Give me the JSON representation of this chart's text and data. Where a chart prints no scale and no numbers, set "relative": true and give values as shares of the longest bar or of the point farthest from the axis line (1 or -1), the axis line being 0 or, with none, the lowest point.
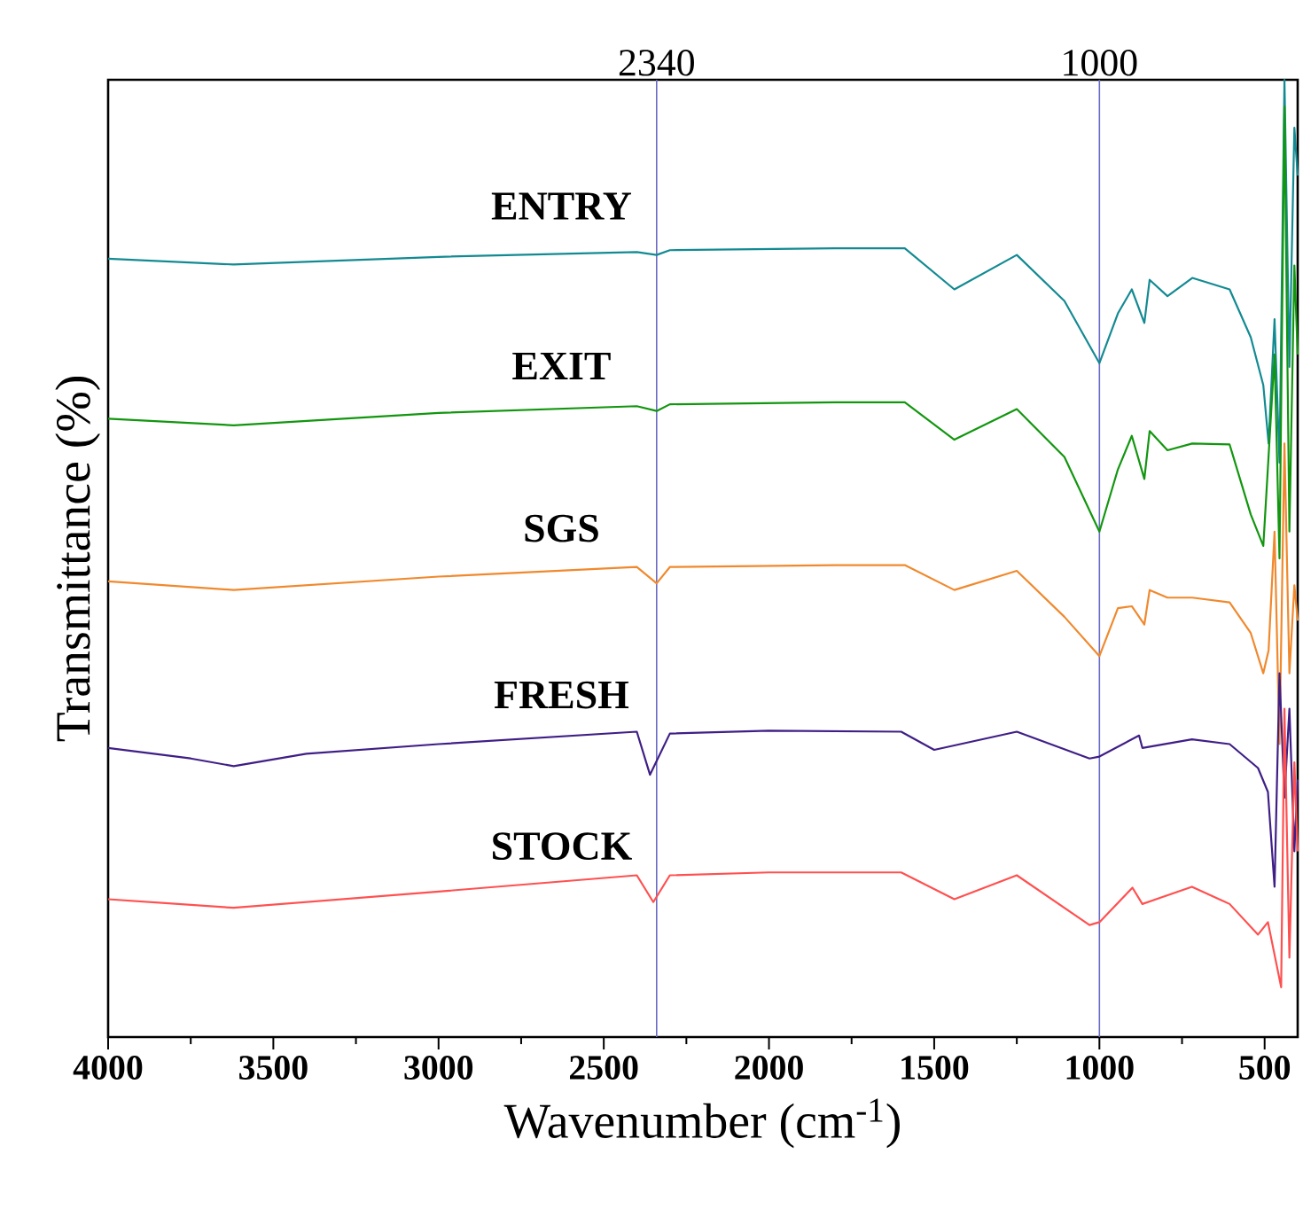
{
  "chart_data": {
    "type": "line",
    "relative": true,
    "xlabel": "Wavenumber (cm$^{-1}$)",
    "ylabel": "Transmittance (%)",
    "xlim": [
      4000,
      400
    ],
    "xticks": [
      4000,
      3500,
      3000,
      2500,
      2000,
      1500,
      1000,
      500
    ],
    "tick_labels": "x",
    "grid": false,
    "marker": "none",
    "line_style": "solid",
    "ref_lines": [
      {
        "axis": "x",
        "value": 2340,
        "label": "2340",
        "color": "#6b6bc4"
      },
      {
        "axis": "x",
        "value": 1000,
        "label": "1000",
        "color": "#6b6bc4"
      }
    ],
    "series": [
      {
        "name": "ENTRY",
        "color": "#138a92",
        "x": [
          4000,
          3620,
          3000,
          2400,
          2340,
          2300,
          1800,
          1589,
          1439,
          1250,
          1106,
          1000,
          944,
          902,
          864,
          848,
          794,
          719,
          606,
          542,
          504,
          488,
          470,
          455,
          440,
          425,
          410,
          400
        ],
        "values": [
          0.813,
          0.807,
          0.815,
          0.82,
          0.817,
          0.822,
          0.824,
          0.824,
          0.781,
          0.817,
          0.769,
          0.704,
          0.756,
          0.781,
          0.746,
          0.791,
          0.774,
          0.793,
          0.781,
          0.731,
          0.681,
          0.62,
          0.75,
          0.6,
          1.0,
          0.7,
          0.95,
          0.9
        ]
      },
      {
        "name": "EXIT",
        "color": "#12960f",
        "x": [
          4000,
          3620,
          3000,
          2400,
          2340,
          2300,
          1800,
          1589,
          1439,
          1250,
          1106,
          1000,
          944,
          902,
          864,
          848,
          794,
          719,
          606,
          542,
          504,
          470,
          455,
          440,
          425,
          410,
          400
        ],
        "values": [
          0.646,
          0.639,
          0.652,
          0.659,
          0.654,
          0.661,
          0.663,
          0.663,
          0.624,
          0.656,
          0.606,
          0.528,
          0.593,
          0.628,
          0.583,
          0.633,
          0.613,
          0.62,
          0.619,
          0.546,
          0.513,
          0.713,
          0.5,
          0.972,
          0.528,
          0.806,
          0.713
        ]
      },
      {
        "name": "SGS",
        "color": "#f0892d",
        "x": [
          4000,
          3620,
          3000,
          2400,
          2340,
          2300,
          1800,
          1589,
          1439,
          1250,
          1106,
          1000,
          944,
          902,
          864,
          848,
          794,
          719,
          606,
          542,
          504,
          488,
          470,
          455,
          440,
          425,
          410,
          400
        ],
        "values": [
          0.476,
          0.467,
          0.481,
          0.491,
          0.474,
          0.491,
          0.493,
          0.493,
          0.467,
          0.487,
          0.439,
          0.398,
          0.448,
          0.45,
          0.431,
          0.467,
          0.459,
          0.459,
          0.454,
          0.422,
          0.38,
          0.404,
          0.528,
          0.306,
          0.62,
          0.38,
          0.472,
          0.435
        ]
      },
      {
        "name": "FRESH",
        "color": "#3f1f86",
        "x": [
          4000,
          3750,
          3620,
          3400,
          3000,
          2400,
          2360,
          2300,
          2000,
          1600,
          1500,
          1250,
          1030,
          1000,
          880,
          870,
          720,
          606,
          520,
          490,
          470,
          455,
          440,
          425,
          410,
          400
        ],
        "values": [
          0.302,
          0.291,
          0.283,
          0.296,
          0.306,
          0.319,
          0.274,
          0.317,
          0.32,
          0.319,
          0.3,
          0.319,
          0.291,
          0.293,
          0.315,
          0.302,
          0.311,
          0.306,
          0.281,
          0.256,
          0.157,
          0.38,
          0.25,
          0.343,
          0.194,
          0.269
        ]
      },
      {
        "name": "STOCK",
        "color": "#ff5050",
        "x": [
          4000,
          3620,
          3000,
          2400,
          2350,
          2300,
          2000,
          1600,
          1439,
          1250,
          1030,
          1000,
          900,
          870,
          720,
          606,
          520,
          490,
          450,
          440,
          425,
          410,
          400
        ],
        "values": [
          0.144,
          0.135,
          0.152,
          0.169,
          0.141,
          0.169,
          0.172,
          0.172,
          0.144,
          0.169,
          0.117,
          0.12,
          0.156,
          0.139,
          0.157,
          0.139,
          0.107,
          0.12,
          0.052,
          0.343,
          0.083,
          0.287,
          0.194
        ]
      }
    ]
  }
}
